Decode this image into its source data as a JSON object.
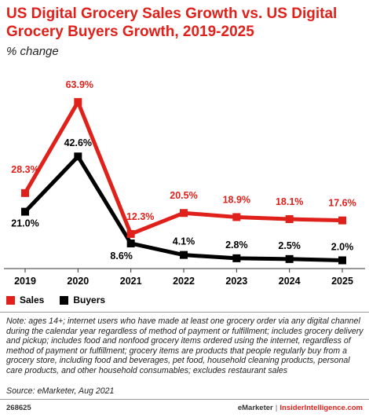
{
  "title": "US Digital Grocery Sales Growth vs. US Digital Grocery Buyers Growth, 2019-2025",
  "subtitle": "% change",
  "chart_data": {
    "type": "line",
    "title": "US Digital Grocery Sales Growth vs. US Digital Grocery Buyers Growth, 2019-2025",
    "subtitle": "% change",
    "x": [
      "2019",
      "2020",
      "2021",
      "2022",
      "2023",
      "2024",
      "2025"
    ],
    "ylim": [
      0,
      70
    ],
    "grid": false,
    "legend_position": "bottom-left",
    "series": [
      {
        "name": "Sales",
        "color": "#e0211b",
        "values": [
          28.3,
          63.9,
          12.3,
          20.5,
          18.9,
          18.1,
          17.6
        ],
        "labels": [
          "28.3%",
          "63.9%",
          "12.3%",
          "20.5%",
          "18.9%",
          "18.1%",
          "17.6%"
        ]
      },
      {
        "name": "Buyers",
        "color": "#000000",
        "values": [
          21.0,
          42.6,
          8.6,
          4.1,
          2.8,
          2.5,
          2.0
        ],
        "labels": [
          "21.0%",
          "42.6%",
          "8.6%",
          "4.1%",
          "2.8%",
          "2.5%",
          "2.0%"
        ]
      }
    ]
  },
  "note": "Note: ages 14+; internet users who have made at least one grocery order via any digital channel during the calendar year regardless of method of payment or fulfillment; includes grocery delivery and pickup; includes food and nonfood grocery items ordered using the internet, regardless of method of payment or fulfillment; grocery items are products that people regularly buy from a grocery store, including food and beverages, pet food, household cleaning products, personal care products, and other household consumables; excludes restaurant sales",
  "source": "Source: eMarketer, Aug 2021",
  "footer": {
    "chart_id": "268625",
    "brand": "eMarketer",
    "separator": "|",
    "brand_site": "InsiderIntelligence.com"
  }
}
